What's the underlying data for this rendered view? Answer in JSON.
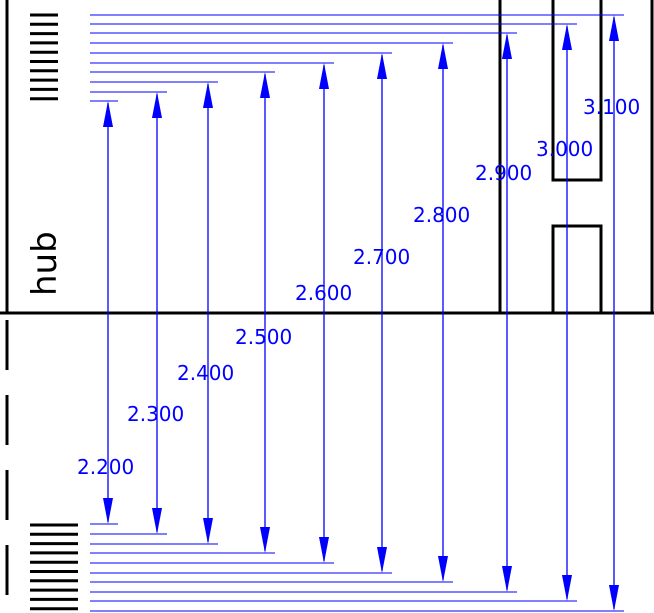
{
  "drawing": {
    "part_label": "hub",
    "dimension_units": "",
    "dimensions": [
      {
        "value": "2.200"
      },
      {
        "value": "2.300"
      },
      {
        "value": "2.400"
      },
      {
        "value": "2.500"
      },
      {
        "value": "2.600"
      },
      {
        "value": "2.700"
      },
      {
        "value": "2.800"
      },
      {
        "value": "2.900"
      },
      {
        "value": "3.000"
      },
      {
        "value": "3.100"
      }
    ],
    "colors": {
      "dimension": "#0000ff",
      "outline": "#000000",
      "background": "#ffffff"
    }
  }
}
